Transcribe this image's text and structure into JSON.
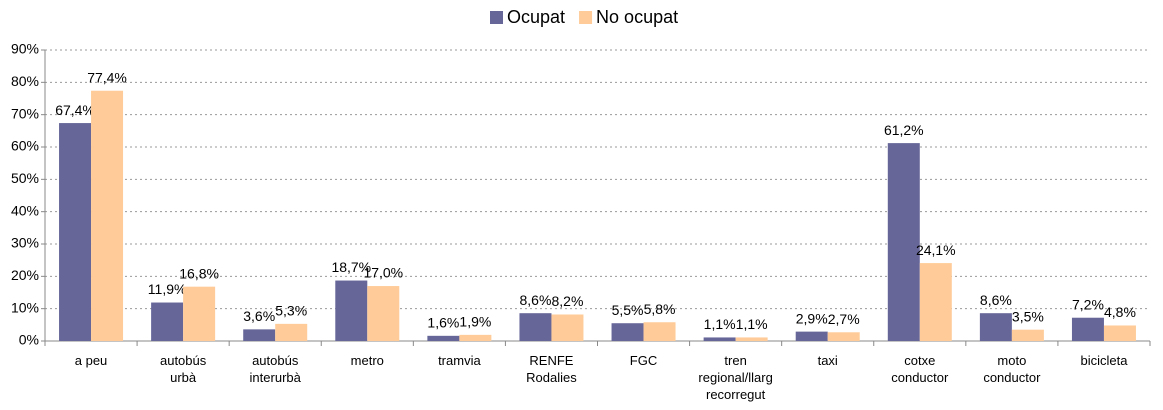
{
  "chart_data": {
    "type": "bar",
    "categories": [
      "a peu",
      "autobús\nurbà",
      "autobús\ninterurbà",
      "metro",
      "tramvia",
      "RENFE\nRodalies",
      "FGC",
      "tren\nregional/llarg\nrecorregut",
      "taxi",
      "cotxe\nconductor",
      "moto\nconductor",
      "bicicleta"
    ],
    "series": [
      {
        "name": "Ocupat",
        "color": "#666699",
        "values": [
          67.4,
          11.9,
          3.6,
          18.7,
          1.6,
          8.6,
          5.5,
          1.1,
          2.9,
          61.2,
          8.6,
          7.2
        ],
        "value_labels": [
          "67,4%",
          "11,9%",
          "3,6%",
          "18,7%",
          "1,6%",
          "8,6%",
          "5,5%",
          "1,1%",
          "2,9%",
          "61,2%",
          "8,6%",
          "7,2%"
        ]
      },
      {
        "name": "No ocupat",
        "color": "#FFCC99",
        "values": [
          77.4,
          16.8,
          5.3,
          17.0,
          1.9,
          8.2,
          5.8,
          1.1,
          2.7,
          24.1,
          3.5,
          4.8
        ],
        "value_labels": [
          "77,4%",
          "16,8%",
          "5,3%",
          "17,0%",
          "1,9%",
          "8,2%",
          "5,8%",
          "1,1%",
          "2,7%",
          "24,1%",
          "3,5%",
          "4,8%"
        ]
      }
    ],
    "ylim": [
      0,
      90
    ],
    "yticks": [
      {
        "value": 0,
        "label": "0%"
      },
      {
        "value": 10,
        "label": "10%"
      },
      {
        "value": 20,
        "label": "20%"
      },
      {
        "value": 30,
        "label": "30%"
      },
      {
        "value": 40,
        "label": "40%"
      },
      {
        "value": 50,
        "label": "50%"
      },
      {
        "value": 60,
        "label": "60%"
      },
      {
        "value": 70,
        "label": "70%"
      },
      {
        "value": 80,
        "label": "80%"
      },
      {
        "value": 90,
        "label": "90%"
      }
    ],
    "grid": true,
    "legend": "top"
  }
}
